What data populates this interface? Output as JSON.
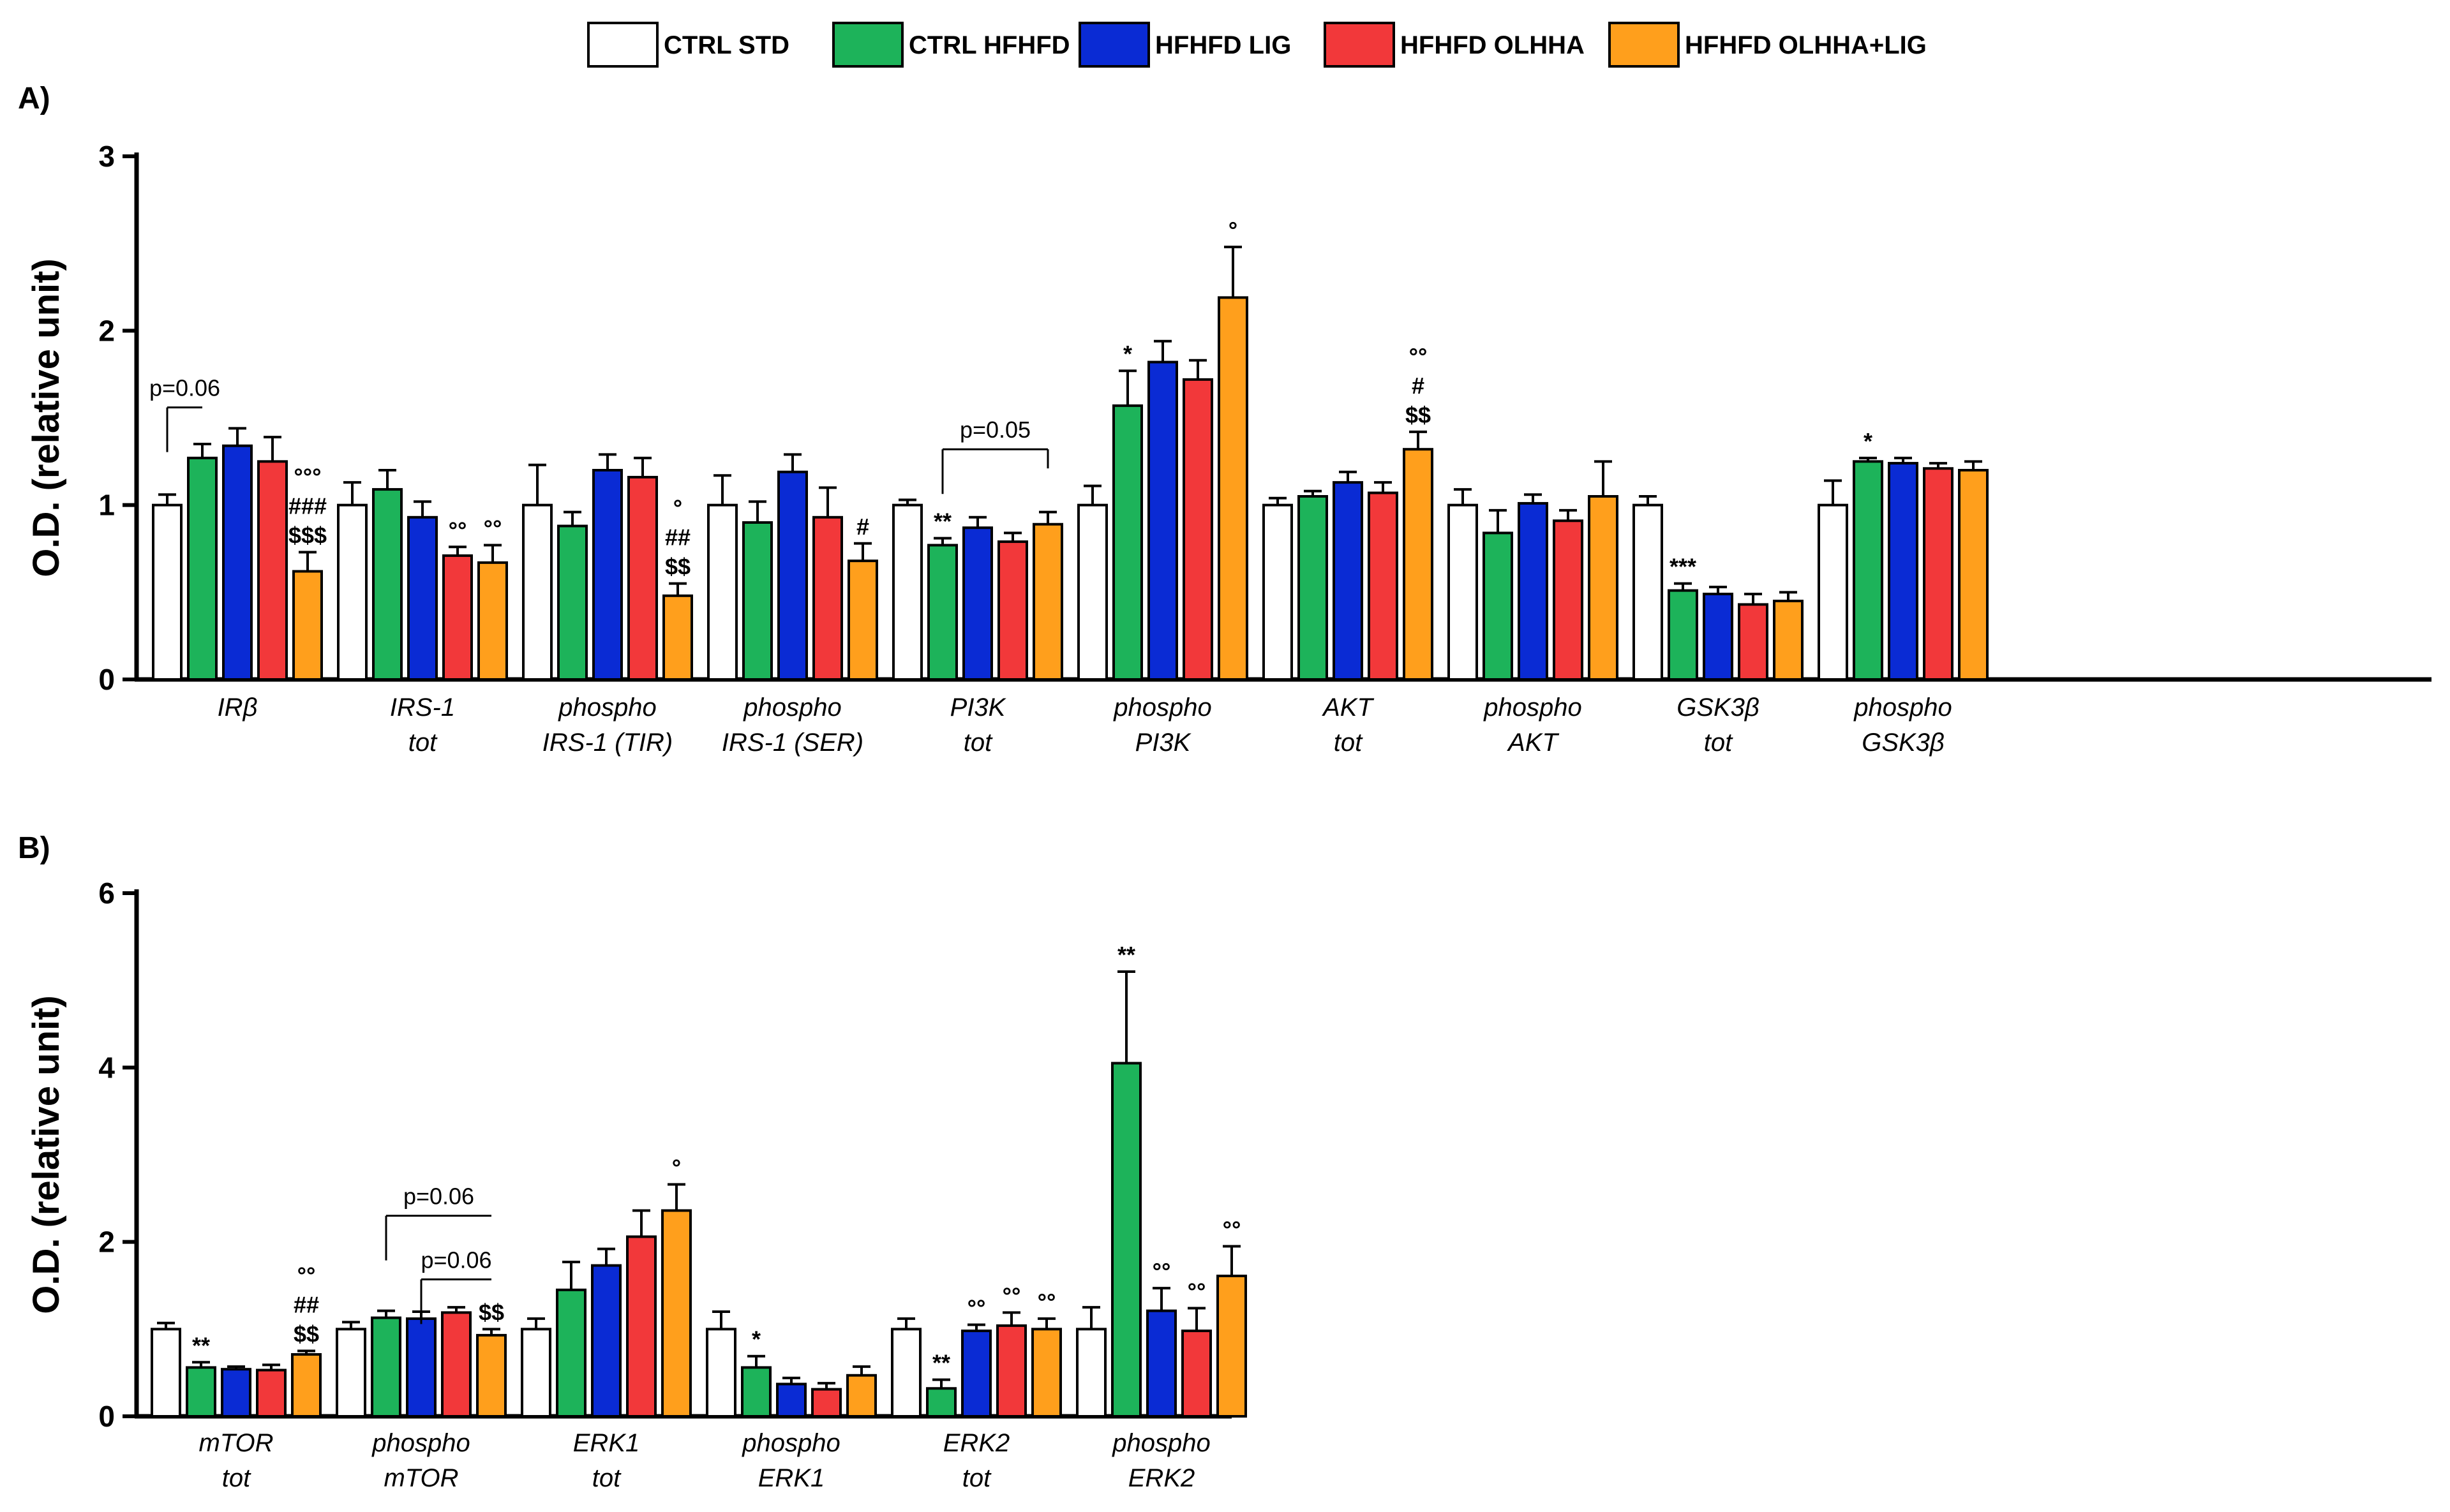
{
  "legend": [
    {
      "label": "CTRL STD",
      "color": "#ffffff"
    },
    {
      "label": "CTRL HFHFD",
      "color": "#1db35a"
    },
    {
      "label": "HFHFD LIG",
      "color": "#0a2bd4"
    },
    {
      "label": "HFHFD OLHHA",
      "color": "#f2383a"
    },
    {
      "label": "HFHFD OLHHA+LIG",
      "color": "#ff9f1c"
    }
  ],
  "chart_data": [
    {
      "panel": "A)",
      "type": "bar",
      "ylabel": "O.D. (relative unit)",
      "ylim": [
        0,
        3
      ],
      "yticks": [
        "0",
        "1",
        "2",
        "3"
      ],
      "categories": [
        {
          "line1": "IRβ",
          "line2": ""
        },
        {
          "line1": "IRS-1",
          "line2": "tot"
        },
        {
          "line1": "phospho",
          "line2": "IRS-1 (TIR)"
        },
        {
          "line1": "phospho",
          "line2": "IRS-1 (SER)"
        },
        {
          "line1": "PI3K",
          "line2": "tot"
        },
        {
          "line1": "phospho",
          "line2": "PI3K"
        },
        {
          "line1": "AKT",
          "line2": "tot"
        },
        {
          "line1": "phospho",
          "line2": "AKT"
        },
        {
          "line1": "GSK3β",
          "line2": "tot"
        },
        {
          "line1": "phospho",
          "line2": "GSK3β"
        }
      ],
      "series": [
        {
          "name": "CTRL STD",
          "values": [
            1.0,
            1.0,
            1.0,
            1.0,
            1.0,
            1.0,
            1.0,
            1.0,
            1.0,
            1.0
          ],
          "errors": [
            0.06,
            0.13,
            0.23,
            0.17,
            0.03,
            0.11,
            0.04,
            0.09,
            0.05,
            0.14
          ]
        },
        {
          "name": "CTRL HFHFD",
          "values": [
            1.27,
            1.09,
            0.88,
            0.9,
            0.77,
            1.57,
            1.05,
            0.84,
            0.51,
            1.25
          ],
          "errors": [
            0.08,
            0.11,
            0.08,
            0.12,
            0.04,
            0.2,
            0.03,
            0.13,
            0.04,
            0.02
          ]
        },
        {
          "name": "HFHFD LIG",
          "values": [
            1.34,
            0.93,
            1.2,
            1.19,
            0.87,
            1.82,
            1.13,
            1.01,
            0.49,
            1.24
          ],
          "errors": [
            0.1,
            0.09,
            0.09,
            0.1,
            0.06,
            0.12,
            0.06,
            0.05,
            0.04,
            0.03
          ]
        },
        {
          "name": "HFHFD OLHHA",
          "values": [
            1.25,
            0.71,
            1.16,
            0.93,
            0.79,
            1.72,
            1.07,
            0.91,
            0.43,
            1.21
          ],
          "errors": [
            0.14,
            0.05,
            0.11,
            0.17,
            0.05,
            0.11,
            0.06,
            0.06,
            0.06,
            0.03
          ]
        },
        {
          "name": "HFHFD OLHHA+LIG",
          "values": [
            0.62,
            0.67,
            0.48,
            0.68,
            0.89,
            2.19,
            1.32,
            1.05,
            0.45,
            1.2
          ],
          "errors": [
            0.11,
            0.1,
            0.07,
            0.1,
            0.07,
            0.29,
            0.1,
            0.2,
            0.05,
            0.05
          ]
        }
      ],
      "annotations": [
        {
          "category": 0,
          "series": 4,
          "lines": [
            "°°°",
            "###",
            "$$$"
          ]
        },
        {
          "category": 1,
          "series": 3,
          "lines": [
            "°°"
          ]
        },
        {
          "category": 1,
          "series": 4,
          "lines": [
            "°°"
          ]
        },
        {
          "category": 2,
          "series": 4,
          "lines": [
            "°",
            "##",
            "$$"
          ]
        },
        {
          "category": 3,
          "series": 4,
          "lines": [
            "#"
          ]
        },
        {
          "category": 4,
          "series": 1,
          "lines": [
            "**"
          ]
        },
        {
          "category": 5,
          "series": 1,
          "lines": [
            "*"
          ]
        },
        {
          "category": 5,
          "series": 4,
          "lines": [
            "°"
          ]
        },
        {
          "category": 6,
          "series": 4,
          "lines": [
            "°°",
            "#",
            "$$"
          ]
        },
        {
          "category": 8,
          "series": 1,
          "lines": [
            "***"
          ]
        },
        {
          "category": 9,
          "series": 1,
          "lines": [
            "*"
          ]
        }
      ],
      "brackets": [
        {
          "label": "p=0.06",
          "category": 0,
          "from_series": 0,
          "to_series": 1,
          "level": 1.56,
          "style": "left-drop"
        },
        {
          "label": "p=0.05",
          "category": 4,
          "from_series": 1,
          "to_series": 4,
          "level": 1.32,
          "style": "both-drop"
        }
      ]
    },
    {
      "panel": "B)",
      "type": "bar",
      "ylabel": "O.D. (relative unit)",
      "ylim": [
        0,
        6
      ],
      "yticks": [
        "0",
        "2",
        "4",
        "6"
      ],
      "categories": [
        {
          "line1": "mTOR",
          "line2": "tot"
        },
        {
          "line1": "phospho",
          "line2": "mTOR"
        },
        {
          "line1": "ERK1",
          "line2": "tot"
        },
        {
          "line1": "phospho",
          "line2": "ERK1"
        },
        {
          "line1": "ERK2",
          "line2": "tot"
        },
        {
          "line1": "phospho",
          "line2": "ERK2"
        }
      ],
      "series": [
        {
          "name": "CTRL STD",
          "values": [
            1.0,
            1.0,
            1.0,
            1.0,
            1.0,
            1.0
          ],
          "errors": [
            0.07,
            0.08,
            0.12,
            0.2,
            0.12,
            0.25
          ]
        },
        {
          "name": "CTRL HFHFD",
          "values": [
            0.56,
            1.13,
            1.45,
            0.56,
            0.32,
            4.05
          ],
          "errors": [
            0.06,
            0.08,
            0.32,
            0.13,
            0.1,
            1.05
          ]
        },
        {
          "name": "HFHFD LIG",
          "values": [
            0.54,
            1.12,
            1.73,
            0.37,
            0.98,
            1.21
          ],
          "errors": [
            0.03,
            0.08,
            0.19,
            0.07,
            0.07,
            0.26
          ]
        },
        {
          "name": "HFHFD OLHHA",
          "values": [
            0.53,
            1.19,
            2.06,
            0.31,
            1.04,
            0.98
          ],
          "errors": [
            0.06,
            0.06,
            0.3,
            0.07,
            0.15,
            0.26
          ]
        },
        {
          "name": "HFHFD OLHHA+LIG",
          "values": [
            0.71,
            0.93,
            2.36,
            0.47,
            1.0,
            1.61
          ],
          "errors": [
            0.04,
            0.07,
            0.3,
            0.1,
            0.12,
            0.34
          ]
        }
      ],
      "annotations": [
        {
          "category": 0,
          "series": 1,
          "lines": [
            "**"
          ]
        },
        {
          "category": 0,
          "series": 4,
          "lines": [
            "°°",
            "##",
            "$$"
          ]
        },
        {
          "category": 1,
          "series": 4,
          "lines": [
            "$$"
          ]
        },
        {
          "category": 2,
          "series": 4,
          "lines": [
            "°"
          ]
        },
        {
          "category": 3,
          "series": 1,
          "lines": [
            "*"
          ]
        },
        {
          "category": 4,
          "series": 1,
          "lines": [
            "**"
          ]
        },
        {
          "category": 4,
          "series": 2,
          "lines": [
            "°°"
          ]
        },
        {
          "category": 4,
          "series": 3,
          "lines": [
            "°°"
          ]
        },
        {
          "category": 4,
          "series": 4,
          "lines": [
            "°°"
          ]
        },
        {
          "category": 5,
          "series": 1,
          "lines": [
            "**"
          ]
        },
        {
          "category": 5,
          "series": 2,
          "lines": [
            "°°"
          ]
        },
        {
          "category": 5,
          "series": 3,
          "lines": [
            "°°"
          ]
        },
        {
          "category": 5,
          "series": 4,
          "lines": [
            "°°"
          ]
        }
      ],
      "brackets": [
        {
          "label": "p=0.06",
          "category": 1,
          "from_series": 1,
          "to_series": 4,
          "level": 2.3,
          "style": "left-drop"
        },
        {
          "label": "p=0.06",
          "category": 1,
          "from_series": 2,
          "to_series": 4,
          "level": 1.57,
          "style": "left-drop"
        }
      ]
    }
  ]
}
